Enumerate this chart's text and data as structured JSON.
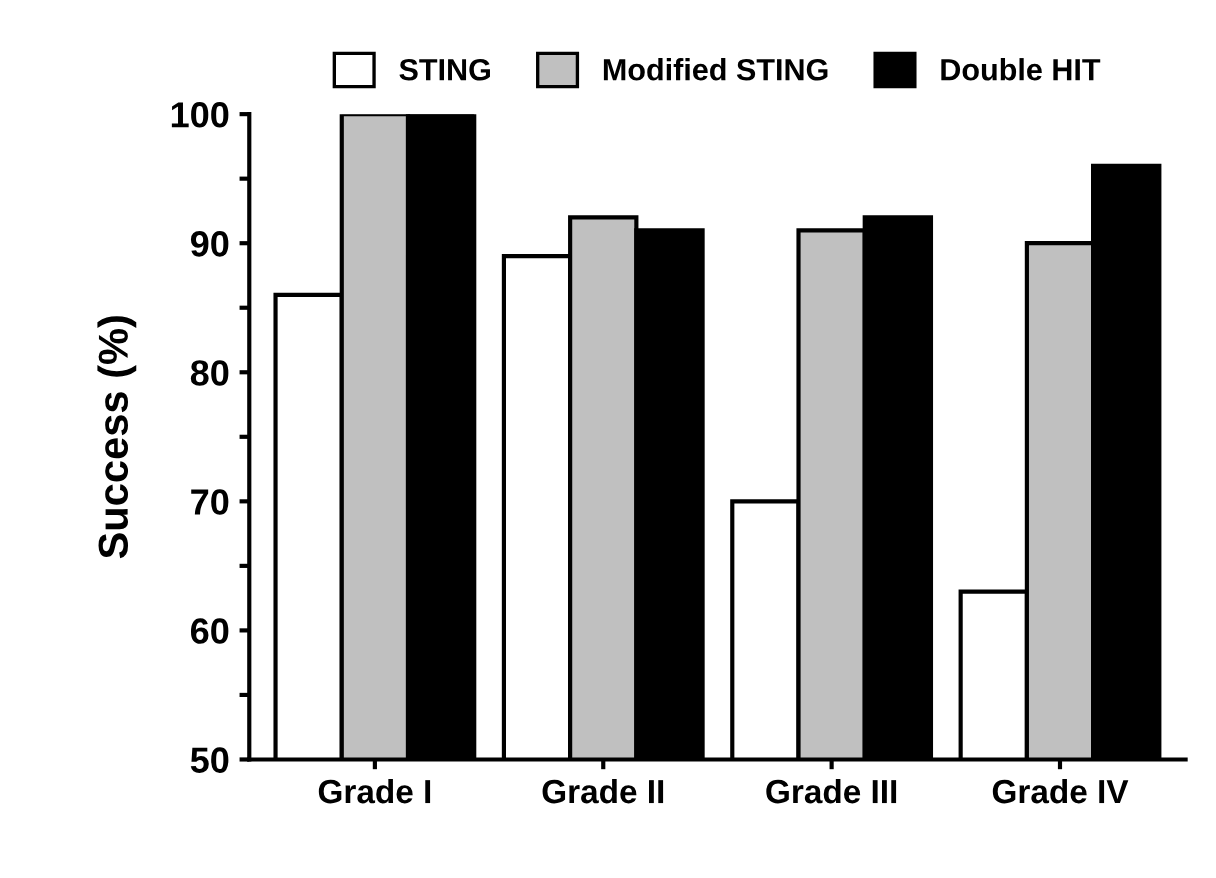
{
  "chart_data": {
    "type": "bar",
    "ylabel": "Success (%)",
    "categories": [
      "Grade I",
      "Grade II",
      "Grade III",
      "Grade IV"
    ],
    "series": [
      {
        "name": "STING",
        "color": "#ffffff",
        "values": [
          86,
          89,
          70,
          63
        ]
      },
      {
        "name": "Modified STING",
        "color": "#c0c0c0",
        "values": [
          100,
          92,
          91,
          90
        ]
      },
      {
        "name": "Double HIT",
        "color": "#000000",
        "values": [
          100,
          91,
          92,
          96
        ]
      }
    ],
    "ylim": [
      50,
      100
    ],
    "yticks": [
      50,
      {
        "value": 55,
        "label": null
      },
      60,
      {
        "value": 65,
        "label": null
      },
      70,
      {
        "value": 75,
        "label": null
      },
      80,
      {
        "value": 85,
        "label": null
      },
      90,
      {
        "value": 95,
        "label": null
      },
      100
    ],
    "grid": false,
    "legend": "top"
  }
}
